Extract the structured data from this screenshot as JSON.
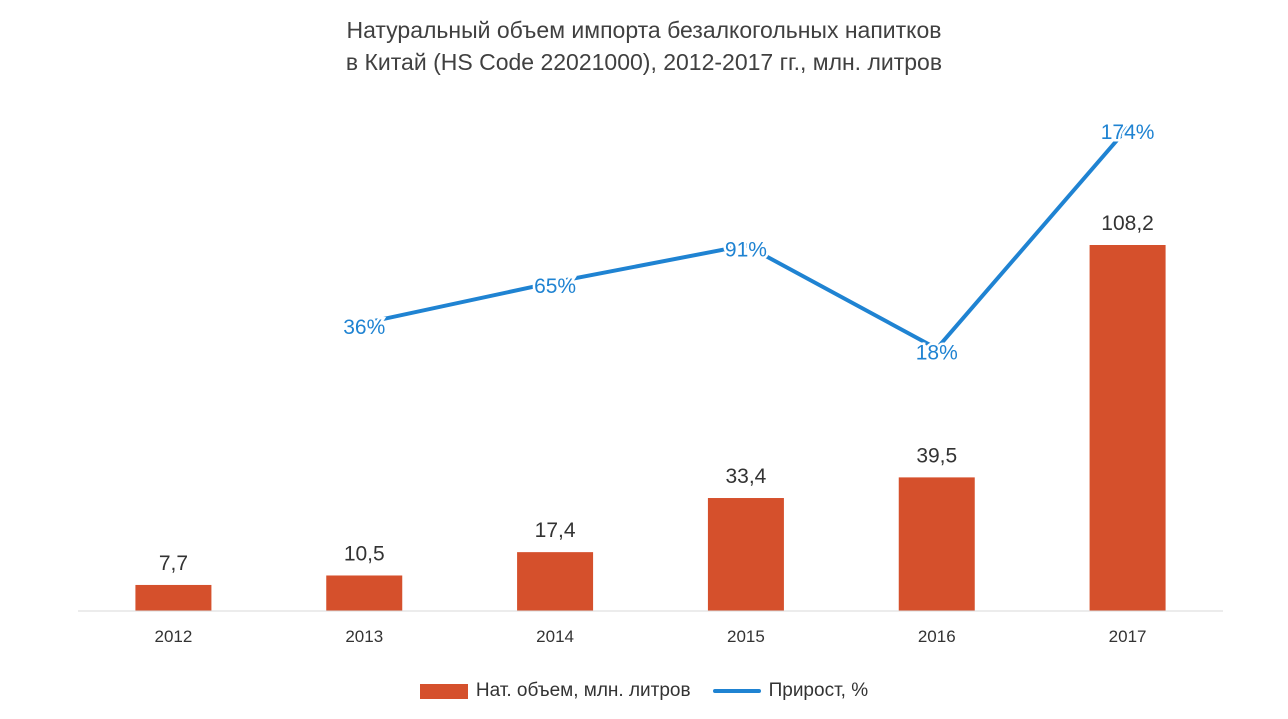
{
  "chart_data": {
    "type": "bar",
    "title_lines": [
      "Натуральный объем импорта безалкогольных напитков",
      "в Китай (HS Code 22021000), 2012-2017 гг., млн. литров"
    ],
    "categories": [
      "2012",
      "2013",
      "2014",
      "2015",
      "2016",
      "2017"
    ],
    "series": [
      {
        "name": "Нат. объем, млн. литров",
        "type": "bar",
        "values": [
          7.7,
          10.5,
          17.4,
          33.4,
          39.5,
          108.2
        ],
        "labels": [
          "7,7",
          "10,5",
          "17,4",
          "33,4",
          "39,5",
          "108,2"
        ],
        "color": "#D5502C"
      },
      {
        "name": "Прирост, %",
        "type": "line",
        "values": [
          null,
          36,
          65,
          91,
          18,
          174
        ],
        "labels": [
          "",
          "36%",
          "65%",
          "91%",
          "18%",
          "174%"
        ],
        "color": "#1F83D2"
      }
    ],
    "ylim": [
      0,
      108.2
    ],
    "line_ylim": [
      0,
      174
    ],
    "grid": false,
    "legend_position": "bottom"
  }
}
